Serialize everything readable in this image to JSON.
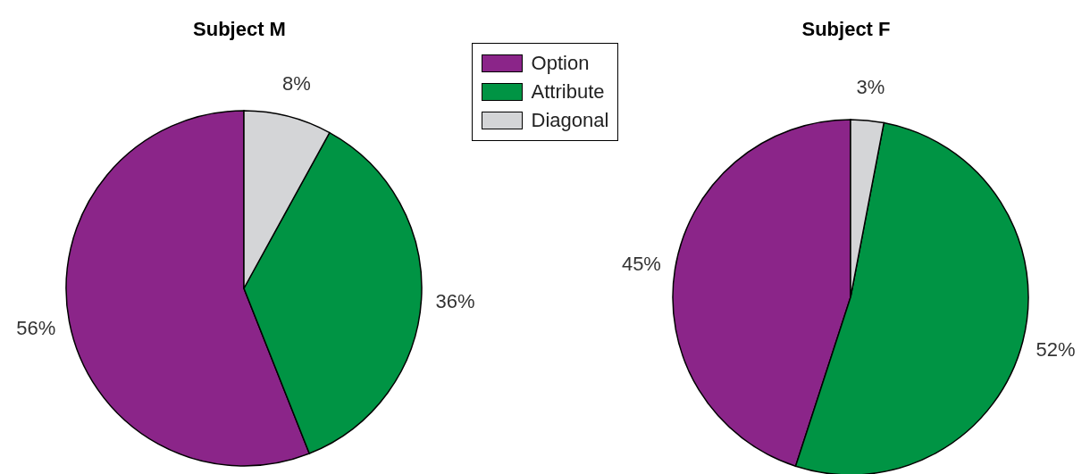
{
  "chart_data": {
    "type": "pie",
    "categories": [
      "Option",
      "Attribute",
      "Diagonal"
    ],
    "colors": [
      "#8b2589",
      "#009444",
      "#d4d5d7"
    ],
    "legend": "top",
    "series": [
      {
        "name": "Subject M",
        "values": [
          56,
          36,
          8
        ],
        "value_labels": [
          "56%",
          "36%",
          "8%"
        ]
      },
      {
        "name": "Subject F",
        "values": [
          45,
          52,
          3
        ],
        "value_labels": [
          "45%",
          "52%",
          "3%"
        ]
      }
    ]
  }
}
